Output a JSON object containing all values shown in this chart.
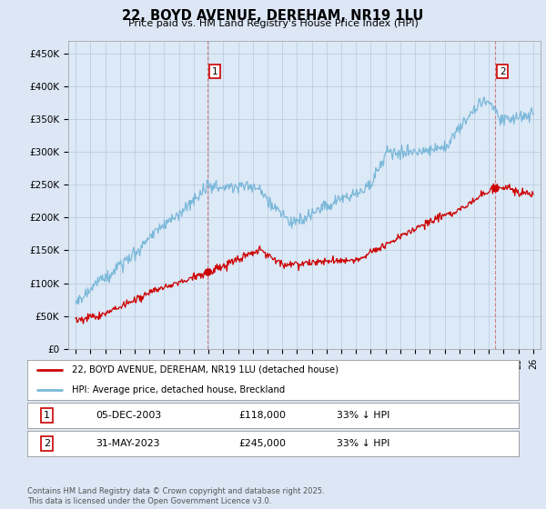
{
  "title": "22, BOYD AVENUE, DEREHAM, NR19 1LU",
  "subtitle": "Price paid vs. HM Land Registry's House Price Index (HPI)",
  "ylabel_ticks": [
    "£0",
    "£50K",
    "£100K",
    "£150K",
    "£200K",
    "£250K",
    "£300K",
    "£350K",
    "£400K",
    "£450K"
  ],
  "ytick_vals": [
    0,
    50000,
    100000,
    150000,
    200000,
    250000,
    300000,
    350000,
    400000,
    450000
  ],
  "ylim": [
    0,
    470000
  ],
  "xlim_start": 1994.5,
  "xlim_end": 2026.5,
  "hpi_color": "#7ab8d9",
  "price_color": "#cc0000",
  "ann1_x": 2003.92,
  "ann1_y": 118000,
  "ann2_x": 2023.42,
  "ann2_y": 245000,
  "legend_red_label": "22, BOYD AVENUE, DEREHAM, NR19 1LU (detached house)",
  "legend_blue_label": "HPI: Average price, detached house, Breckland",
  "footer": "Contains HM Land Registry data © Crown copyright and database right 2025.\nThis data is licensed under the Open Government Licence v3.0.",
  "table_row1": [
    "1",
    "05-DEC-2003",
    "£118,000",
    "33% ↓ HPI"
  ],
  "table_row2": [
    "2",
    "31-MAY-2023",
    "£245,000",
    "33% ↓ HPI"
  ],
  "background_color": "#dce6f5",
  "plot_bg_color": "#dce9f7"
}
